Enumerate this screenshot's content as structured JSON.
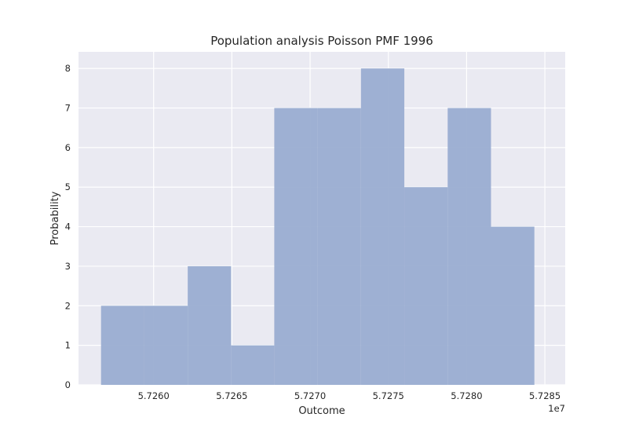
{
  "chart_data": {
    "type": "bar",
    "title": "Population analysis Poisson PMF 1996",
    "xlabel": "Outcome",
    "ylabel": "Probability",
    "x_offset_label": "1e7",
    "x_tick_values": [
      5.726,
      5.7265,
      5.727,
      5.7275,
      5.728,
      5.7285
    ],
    "x_tick_labels": [
      "5.7260",
      "5.7265",
      "5.7270",
      "5.7275",
      "5.7280",
      "5.7285"
    ],
    "y_tick_values": [
      0,
      1,
      2,
      3,
      4,
      5,
      6,
      7,
      8
    ],
    "y_tick_labels": [
      "0",
      "1",
      "2",
      "3",
      "4",
      "5",
      "6",
      "7",
      "8"
    ],
    "xlim": [
      5.72552,
      5.72863
    ],
    "ylim": [
      0,
      8.42
    ],
    "bin_edges": [
      5.725664,
      5.725941,
      5.726218,
      5.726495,
      5.726771,
      5.727048,
      5.727325,
      5.727602,
      5.727879,
      5.728156,
      5.728433
    ],
    "values": [
      2,
      2,
      3,
      1,
      7,
      7,
      8,
      5,
      7,
      4
    ],
    "grid": true,
    "colors": {
      "bar": "#9aadd1",
      "background": "#eaeaf2",
      "grid": "#ffffff"
    }
  }
}
